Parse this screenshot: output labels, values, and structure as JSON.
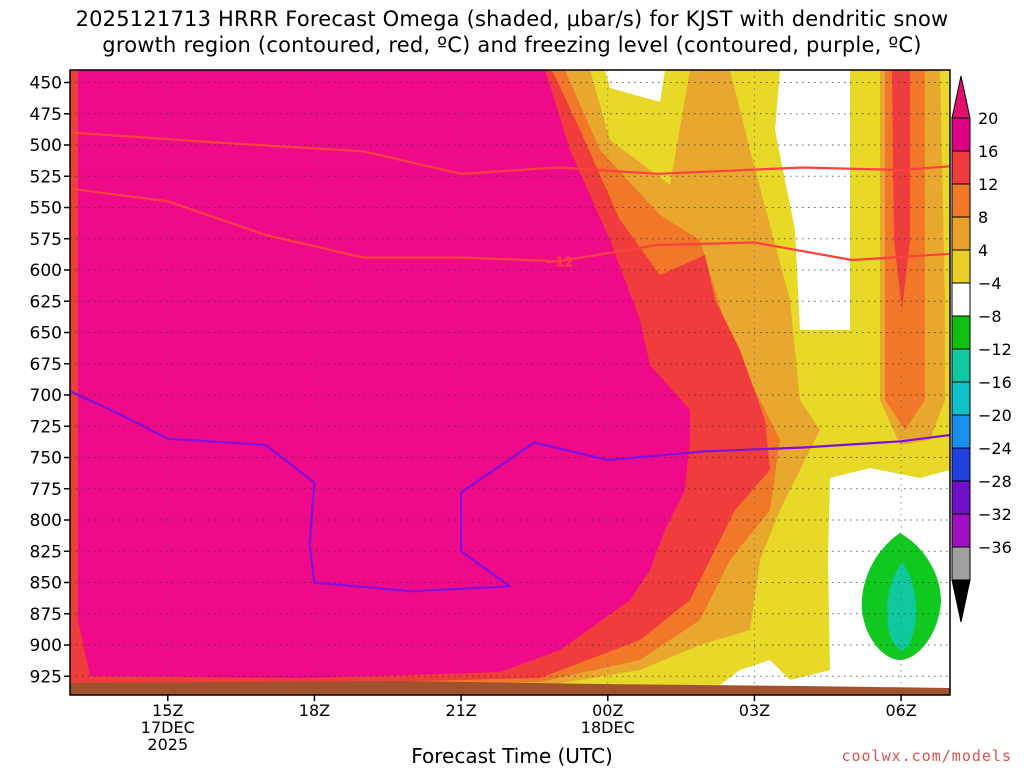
{
  "chart_data": {
    "type": "heatmap",
    "title_line1": "2025121713 HRRR Forecast Omega (shaded, μbar/s) for KJST with dendritic snow",
    "title_line2": "growth region (contoured, red, ºC) and freezing level (contoured, purple, ºC)",
    "xlabel": "Forecast Time (UTC)",
    "ylabel": "",
    "x_ticks": [
      {
        "label": "15Z",
        "sub1": "17DEC",
        "sub2": "2025"
      },
      {
        "label": "18Z",
        "sub1": "",
        "sub2": ""
      },
      {
        "label": "21Z",
        "sub1": "",
        "sub2": ""
      },
      {
        "label": "00Z",
        "sub1": "18DEC",
        "sub2": ""
      },
      {
        "label": "03Z",
        "sub1": "",
        "sub2": ""
      },
      {
        "label": "06Z",
        "sub1": "",
        "sub2": ""
      }
    ],
    "x_hours": [
      15,
      18,
      21,
      24,
      27,
      30
    ],
    "xlim": [
      13.0,
      31.0
    ],
    "y_ticks": [
      450,
      475,
      500,
      525,
      550,
      575,
      600,
      625,
      650,
      675,
      700,
      725,
      750,
      775,
      800,
      825,
      850,
      875,
      900,
      925
    ],
    "ylim": [
      940,
      440
    ],
    "colorbar": {
      "labels": [
        "20",
        "16",
        "12",
        "8",
        "4",
        "−4",
        "−8",
        "−12",
        "−16",
        "−20",
        "−24",
        "−28",
        "−32",
        "−36"
      ],
      "colors": [
        "#e00088",
        "#f03c3c",
        "#f07828",
        "#e8a028",
        "#e8d028",
        "#ffffff",
        "#10c010",
        "#10c8a0",
        "#10c0c8",
        "#1890f0",
        "#2040e0",
        "#7010c8",
        "#a010c0",
        "#a0a0a0"
      ],
      "top_arrow": "#e0106e",
      "bottom_arrow": "#000000"
    },
    "contour_label": "−12",
    "series": [
      {
        "name": "-12",
        "color": "#ff4040",
        "points": [
          [
            13,
            490
          ],
          [
            16,
            498
          ],
          [
            19,
            505
          ],
          [
            21,
            523
          ],
          [
            23,
            518
          ],
          [
            25,
            523
          ],
          [
            28,
            518
          ],
          [
            30,
            520
          ],
          [
            31,
            517
          ]
        ]
      },
      {
        "name": "-12",
        "color": "#ff4040",
        "points": [
          [
            13,
            535
          ],
          [
            15,
            545
          ],
          [
            17,
            572
          ],
          [
            19,
            590
          ],
          [
            21,
            590
          ],
          [
            23,
            593
          ],
          [
            25,
            580
          ],
          [
            27,
            578
          ],
          [
            29,
            592
          ],
          [
            31,
            587
          ]
        ]
      },
      {
        "name": "0",
        "color": "#8010e0",
        "points": [
          [
            13,
            697
          ],
          [
            14,
            715
          ],
          [
            15,
            735
          ],
          [
            17,
            740
          ],
          [
            18,
            770
          ],
          [
            17.9,
            820
          ],
          [
            18,
            850
          ],
          [
            20,
            857
          ],
          [
            22,
            853
          ],
          [
            21,
            825
          ],
          [
            21,
            778
          ],
          [
            22.5,
            738
          ],
          [
            24,
            752
          ],
          [
            26,
            745
          ],
          [
            28,
            742
          ],
          [
            30,
            737
          ],
          [
            31,
            732
          ]
        ]
      }
    ],
    "credit": "coolwx.com/models"
  }
}
